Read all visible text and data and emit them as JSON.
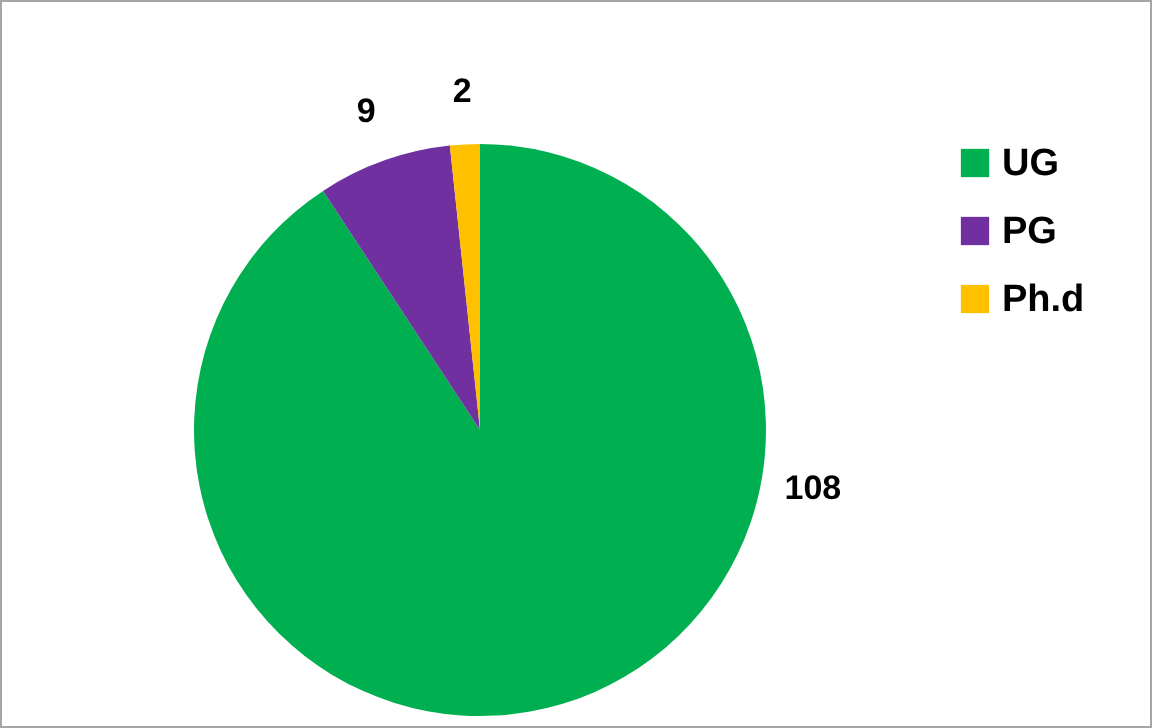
{
  "chart_data": {
    "type": "pie",
    "categories": [
      "UG",
      "PG",
      "Ph.d"
    ],
    "values": [
      108,
      9,
      2
    ],
    "colors": [
      "#00b050",
      "#7030a0",
      "#ffc000"
    ],
    "data_labels": true,
    "legend": "right"
  }
}
